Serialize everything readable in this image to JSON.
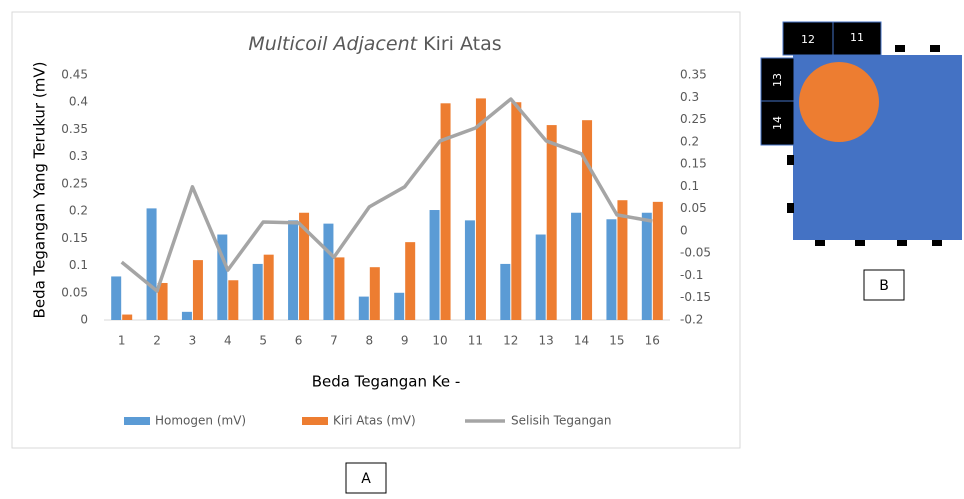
{
  "chart_data": {
    "type": "bar",
    "title": [
      "Multicoil Adjacent",
      "Kiri Atas"
    ],
    "x_label": "Beda Tegangan Ke -",
    "y_label": "Beda Tegangan Yang Terukur (mV)",
    "categories": [
      "1",
      "2",
      "3",
      "4",
      "5",
      "6",
      "7",
      "8",
      "9",
      "10",
      "11",
      "12",
      "13",
      "14",
      "15",
      "16"
    ],
    "series": [
      {
        "name": "Homogen (mV)",
        "type": "bar",
        "color": "#5b9bd5",
        "values": [
          0.08,
          0.205,
          0.015,
          0.157,
          0.103,
          0.183,
          0.177,
          0.043,
          0.05,
          0.202,
          0.183,
          0.103,
          0.157,
          0.197,
          0.185,
          0.197
        ]
      },
      {
        "name": "Kiri Atas (mV)",
        "type": "bar",
        "color": "#ed7d31",
        "values": [
          0.01,
          0.068,
          0.11,
          0.073,
          0.12,
          0.197,
          0.115,
          0.097,
          0.143,
          0.398,
          0.407,
          0.4,
          0.358,
          0.367,
          0.22,
          0.217
        ]
      },
      {
        "name": "Selisih Tegangan",
        "type": "line",
        "axis": "y2",
        "color": "#a5a5a5",
        "values": [
          -0.07,
          -0.135,
          0.099,
          -0.088,
          0.02,
          0.018,
          -0.059,
          0.054,
          0.099,
          0.202,
          0.231,
          0.296,
          0.202,
          0.173,
          0.036,
          0.022
        ]
      }
    ],
    "ylim": [
      0,
      0.45
    ],
    "yticks": [
      0,
      0.05,
      0.1,
      0.15,
      0.2,
      0.25,
      0.3,
      0.35,
      0.4,
      0.45
    ],
    "y2lim": [
      -0.2,
      0.35
    ],
    "y2ticks": [
      -0.2,
      -0.15,
      -0.1,
      -0.05,
      0,
      0.05,
      0.1,
      0.15,
      0.2,
      0.25,
      0.3,
      0.35
    ],
    "grid": false,
    "legend": "bottom"
  },
  "panel_labels": {
    "a": "A",
    "b": "B"
  },
  "diagram": {
    "pins": [
      "12",
      "11",
      "13",
      "14"
    ]
  }
}
